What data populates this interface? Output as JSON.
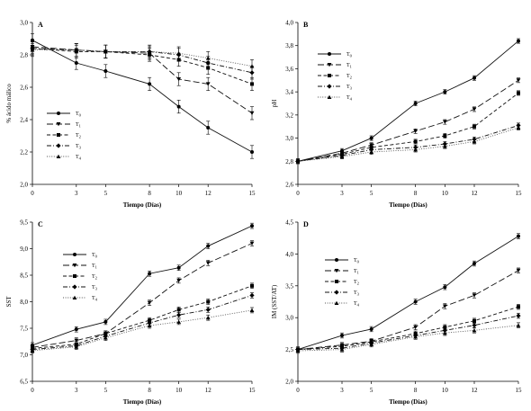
{
  "chart_data": [
    {
      "type": "line",
      "panel_label": "A",
      "xlabel": "Tiempo (Días)",
      "ylabel": "% ácido málico",
      "x": [
        0,
        3,
        5,
        8,
        10,
        12,
        15
      ],
      "xticks": [
        0,
        3,
        5,
        8,
        10,
        12,
        15
      ],
      "ylim": [
        2.0,
        3.0
      ],
      "yticks": [
        "2,0",
        "2,2",
        "2,4",
        "2,6",
        "2,8",
        "3,0"
      ],
      "legend_position": "bottom-left",
      "series": [
        {
          "name": "T0",
          "marker": "circle",
          "dash": "solid",
          "values": [
            2.89,
            2.75,
            2.7,
            2.62,
            2.48,
            2.35,
            2.2
          ],
          "error": [
            0.04,
            0.04,
            0.04,
            0.04,
            0.04,
            0.04,
            0.04
          ]
        },
        {
          "name": "T1",
          "marker": "triangle-down",
          "dash": "long",
          "values": [
            2.85,
            2.83,
            2.82,
            2.81,
            2.65,
            2.62,
            2.44
          ],
          "error": [
            0.04,
            0.04,
            0.04,
            0.04,
            0.04,
            0.04,
            0.04
          ]
        },
        {
          "name": "T2",
          "marker": "square",
          "dash": "medium",
          "values": [
            2.84,
            2.82,
            2.82,
            2.8,
            2.77,
            2.72,
            2.62
          ],
          "error": [
            0.04,
            0.04,
            0.04,
            0.04,
            0.04,
            0.04,
            0.04
          ]
        },
        {
          "name": "T3",
          "marker": "diamond",
          "dash": "dashdot",
          "values": [
            2.84,
            2.83,
            2.82,
            2.82,
            2.8,
            2.75,
            2.69
          ],
          "error": [
            0.04,
            0.04,
            0.04,
            0.04,
            0.04,
            0.04,
            0.04
          ]
        },
        {
          "name": "T4",
          "marker": "triangle-up",
          "dash": "dotted",
          "values": [
            2.83,
            2.83,
            2.82,
            2.82,
            2.81,
            2.78,
            2.73
          ],
          "error": [
            0.04,
            0.04,
            0.04,
            0.04,
            0.04,
            0.04,
            0.04
          ]
        }
      ]
    },
    {
      "type": "line",
      "panel_label": "B",
      "xlabel": "Tiempo (Días)",
      "ylabel": "pH",
      "x": [
        0,
        3,
        5,
        8,
        10,
        12,
        15
      ],
      "xticks": [
        0,
        3,
        5,
        8,
        10,
        12,
        15
      ],
      "ylim": [
        2.6,
        4.0
      ],
      "yticks": [
        "2,6",
        "2,8",
        "3,0",
        "3,2",
        "3,4",
        "3,6",
        "3,8",
        "4,0"
      ],
      "legend_position": "top-left",
      "series": [
        {
          "name": "T0",
          "marker": "circle",
          "dash": "solid",
          "values": [
            2.8,
            2.89,
            3.0,
            3.3,
            3.4,
            3.52,
            3.84
          ],
          "error": [
            0.02,
            0.02,
            0.02,
            0.02,
            0.02,
            0.02,
            0.02
          ]
        },
        {
          "name": "T1",
          "marker": "triangle-down",
          "dash": "long",
          "values": [
            2.8,
            2.87,
            2.94,
            3.06,
            3.14,
            3.25,
            3.5
          ],
          "error": [
            0.02,
            0.02,
            0.02,
            0.02,
            0.02,
            0.02,
            0.02
          ]
        },
        {
          "name": "T2",
          "marker": "square",
          "dash": "medium",
          "values": [
            2.8,
            2.86,
            2.92,
            2.97,
            3.02,
            3.1,
            3.39
          ],
          "error": [
            0.02,
            0.02,
            0.02,
            0.02,
            0.02,
            0.02,
            0.02
          ]
        },
        {
          "name": "T3",
          "marker": "diamond",
          "dash": "dashdot",
          "values": [
            2.8,
            2.85,
            2.9,
            2.92,
            2.95,
            2.99,
            3.11
          ],
          "error": [
            0.02,
            0.02,
            0.02,
            0.02,
            0.02,
            0.02,
            0.02
          ]
        },
        {
          "name": "T4",
          "marker": "triangle-up",
          "dash": "dotted",
          "values": [
            2.8,
            2.84,
            2.88,
            2.9,
            2.93,
            2.97,
            3.09
          ],
          "error": [
            0.02,
            0.02,
            0.02,
            0.02,
            0.02,
            0.02,
            0.02
          ]
        }
      ]
    },
    {
      "type": "line",
      "panel_label": "C",
      "xlabel": "Tiempo (Días)",
      "ylabel": "SST",
      "x": [
        0,
        3,
        5,
        8,
        10,
        12,
        15
      ],
      "xticks": [
        0,
        3,
        5,
        8,
        10,
        12,
        15
      ],
      "ylim": [
        6.5,
        9.5
      ],
      "yticks": [
        "6,5",
        "7,0",
        "7,5",
        "8,0",
        "8,5",
        "9,0",
        "9,5"
      ],
      "legend_position": "top-left",
      "series": [
        {
          "name": "T0",
          "marker": "circle",
          "dash": "solid",
          "values": [
            7.18,
            7.48,
            7.62,
            8.53,
            8.64,
            9.05,
            9.43
          ],
          "error": [
            0.05,
            0.05,
            0.05,
            0.05,
            0.05,
            0.05,
            0.05
          ]
        },
        {
          "name": "T1",
          "marker": "triangle-down",
          "dash": "long",
          "values": [
            7.14,
            7.27,
            7.4,
            7.98,
            8.4,
            8.73,
            9.1
          ],
          "error": [
            0.05,
            0.05,
            0.05,
            0.05,
            0.05,
            0.05,
            0.05
          ]
        },
        {
          "name": "T2",
          "marker": "square",
          "dash": "medium",
          "values": [
            7.12,
            7.2,
            7.4,
            7.65,
            7.85,
            8.0,
            8.3
          ],
          "error": [
            0.05,
            0.05,
            0.05,
            0.05,
            0.05,
            0.05,
            0.05
          ]
        },
        {
          "name": "T3",
          "marker": "diamond",
          "dash": "dashdot",
          "values": [
            7.1,
            7.17,
            7.35,
            7.6,
            7.75,
            7.85,
            8.12
          ],
          "error": [
            0.05,
            0.05,
            0.05,
            0.05,
            0.05,
            0.05,
            0.05
          ]
        },
        {
          "name": "T4",
          "marker": "triangle-up",
          "dash": "dotted",
          "values": [
            7.08,
            7.15,
            7.32,
            7.55,
            7.62,
            7.7,
            7.84
          ],
          "error": [
            0.05,
            0.05,
            0.05,
            0.05,
            0.05,
            0.05,
            0.05
          ]
        }
      ]
    },
    {
      "type": "line",
      "panel_label": "D",
      "xlabel": "Tiempo (Días)",
      "ylabel": "IM (SST/AT)",
      "x": [
        0,
        3,
        5,
        8,
        10,
        12,
        15
      ],
      "xticks": [
        0,
        3,
        5,
        8,
        10,
        12,
        15
      ],
      "ylim": [
        2.0,
        4.5
      ],
      "yticks": [
        "2,0",
        "2,5",
        "3,0",
        "3,5",
        "4,0",
        "4,5"
      ],
      "legend_position": "top-left",
      "series": [
        {
          "name": "T0",
          "marker": "circle",
          "dash": "solid",
          "values": [
            2.5,
            2.72,
            2.82,
            3.25,
            3.48,
            3.85,
            4.28
          ],
          "error": [
            0.04,
            0.04,
            0.04,
            0.04,
            0.04,
            0.04,
            0.04
          ]
        },
        {
          "name": "T1",
          "marker": "triangle-down",
          "dash": "long",
          "values": [
            2.5,
            2.57,
            2.63,
            2.85,
            3.18,
            3.35,
            3.74
          ],
          "error": [
            0.04,
            0.04,
            0.04,
            0.04,
            0.04,
            0.04,
            0.04
          ]
        },
        {
          "name": "T2",
          "marker": "square",
          "dash": "medium",
          "values": [
            2.5,
            2.55,
            2.62,
            2.75,
            2.85,
            2.95,
            3.17
          ],
          "error": [
            0.04,
            0.04,
            0.04,
            0.04,
            0.04,
            0.04,
            0.04
          ]
        },
        {
          "name": "T3",
          "marker": "diamond",
          "dash": "dashdot",
          "values": [
            2.5,
            2.52,
            2.6,
            2.72,
            2.8,
            2.88,
            3.03
          ],
          "error": [
            0.04,
            0.04,
            0.04,
            0.04,
            0.04,
            0.04,
            0.04
          ]
        },
        {
          "name": "T4",
          "marker": "triangle-up",
          "dash": "dotted",
          "values": [
            2.48,
            2.5,
            2.58,
            2.7,
            2.76,
            2.8,
            2.88
          ],
          "error": [
            0.04,
            0.04,
            0.04,
            0.04,
            0.04,
            0.04,
            0.04
          ]
        }
      ]
    }
  ]
}
